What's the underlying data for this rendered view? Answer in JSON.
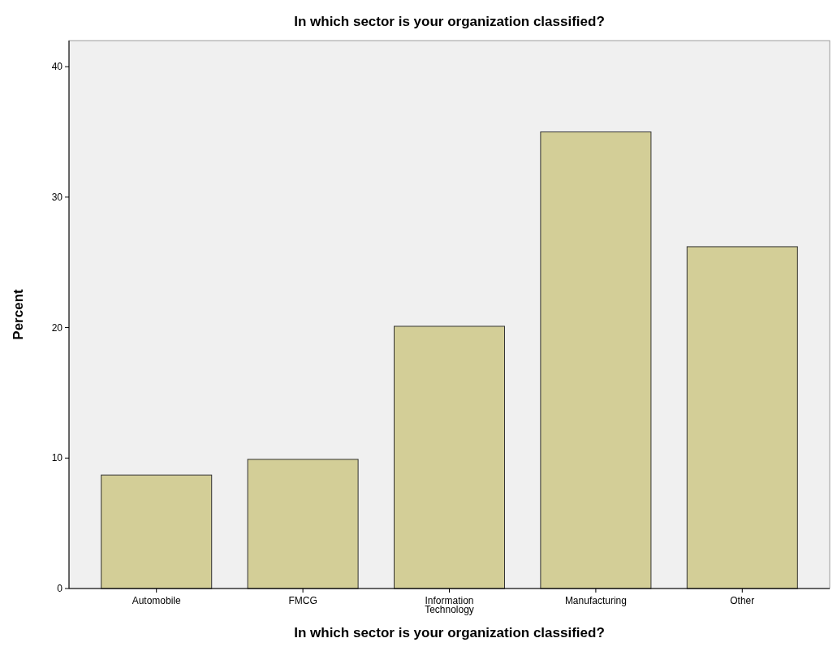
{
  "chart_data": {
    "type": "bar",
    "title": "In which sector is your organization classified?",
    "xlabel": "In which sector is your organization classified?",
    "ylabel": "Percent",
    "categories": [
      "Automobile",
      "FMCG",
      "Information Technology",
      "Manufacturing",
      "Other"
    ],
    "values": [
      8.7,
      9.9,
      20.1,
      35,
      26.2
    ],
    "color": "#d3ce97",
    "ylim": [
      0,
      42
    ],
    "yticks": [
      0,
      10,
      20,
      30,
      40
    ],
    "grid": false
  }
}
